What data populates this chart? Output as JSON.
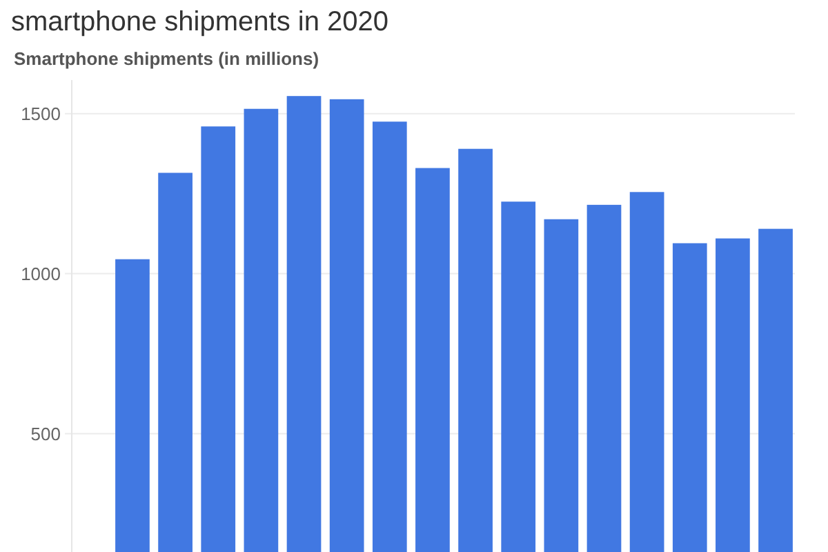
{
  "chart_data": {
    "type": "bar",
    "title": "smartphone shipments in 2020",
    "ylabel": "Smartphone shipments (in millions)",
    "categories": [
      null,
      null,
      null,
      null,
      null,
      null,
      null,
      null,
      null,
      null,
      null,
      null,
      null,
      null,
      null,
      null
    ],
    "values": [
      1045,
      1315,
      1460,
      1515,
      1555,
      1545,
      1475,
      1330,
      1390,
      1225,
      1170,
      1215,
      1255,
      1095,
      1110,
      1140
    ],
    "color": "#4178e2",
    "ylim": [
      130,
      1605
    ],
    "yticks": [
      500,
      1000,
      1500
    ],
    "grid": "y"
  }
}
